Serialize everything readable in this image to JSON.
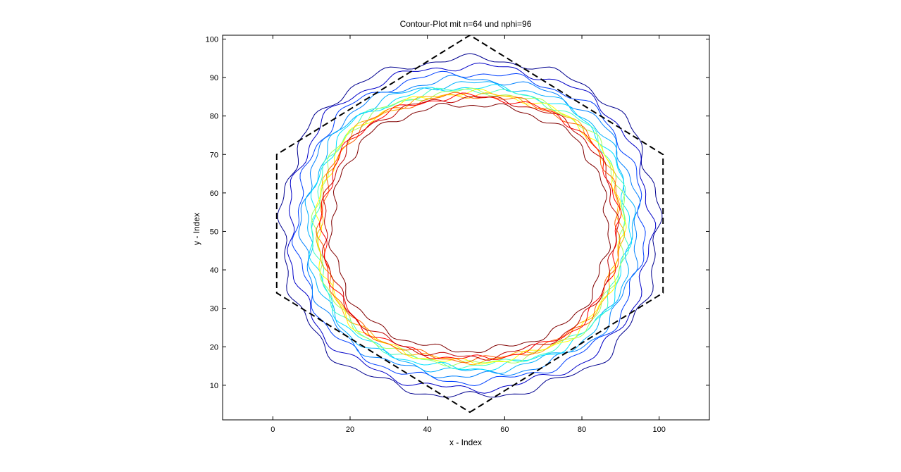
{
  "chart_data": {
    "type": "contour",
    "title": "Contour-Plot mit n=64 und nphi=96",
    "xlabel": "x - Index",
    "ylabel": "y - Index",
    "xlim": [
      -13,
      113
    ],
    "ylim": [
      1,
      101
    ],
    "xticks": [
      0,
      20,
      40,
      60,
      80,
      100
    ],
    "yticks": [
      10,
      20,
      30,
      40,
      50,
      60,
      70,
      80,
      90,
      100
    ],
    "grid": false,
    "legend": "none",
    "colormap": "jet",
    "contour_levels": [
      {
        "name": "level-1",
        "color": "#00008f",
        "rx": 51,
        "ry": 46
      },
      {
        "name": "level-2",
        "color": "#0000c8",
        "rx": 49,
        "ry": 44
      },
      {
        "name": "level-3",
        "color": "#0040ff",
        "rx": 47,
        "ry": 42
      },
      {
        "name": "level-4",
        "color": "#0080ff",
        "rx": 45.5,
        "ry": 40.5
      },
      {
        "name": "level-5",
        "color": "#00b0ff",
        "rx": 44,
        "ry": 39.2
      },
      {
        "name": "level-6",
        "color": "#00e0ff",
        "rx": 43,
        "ry": 38.3
      },
      {
        "name": "level-7",
        "color": "#40ffc0",
        "rx": 42.3,
        "ry": 37.6
      },
      {
        "name": "level-8",
        "color": "#a0ff60",
        "rx": 41.8,
        "ry": 37.1
      },
      {
        "name": "level-9",
        "color": "#ffff00",
        "rx": 41.3,
        "ry": 36.7
      },
      {
        "name": "level-10",
        "color": "#ffb000",
        "rx": 40.9,
        "ry": 36.3
      },
      {
        "name": "level-11",
        "color": "#ff6000",
        "rx": 40.5,
        "ry": 36
      },
      {
        "name": "level-12",
        "color": "#ff0000",
        "rx": 40.1,
        "ry": 35.7
      },
      {
        "name": "level-13",
        "color": "#c00000",
        "rx": 39.6,
        "ry": 35.3
      },
      {
        "name": "level-14",
        "color": "#800000",
        "rx": 37.5,
        "ry": 33.5
      }
    ],
    "hexagon_outline": {
      "style": "dashed",
      "color": "#000000",
      "vertices": [
        [
          51,
          3
        ],
        [
          101,
          34
        ],
        [
          101,
          70
        ],
        [
          51,
          101
        ],
        [
          1,
          70
        ],
        [
          1,
          34
        ]
      ]
    }
  }
}
